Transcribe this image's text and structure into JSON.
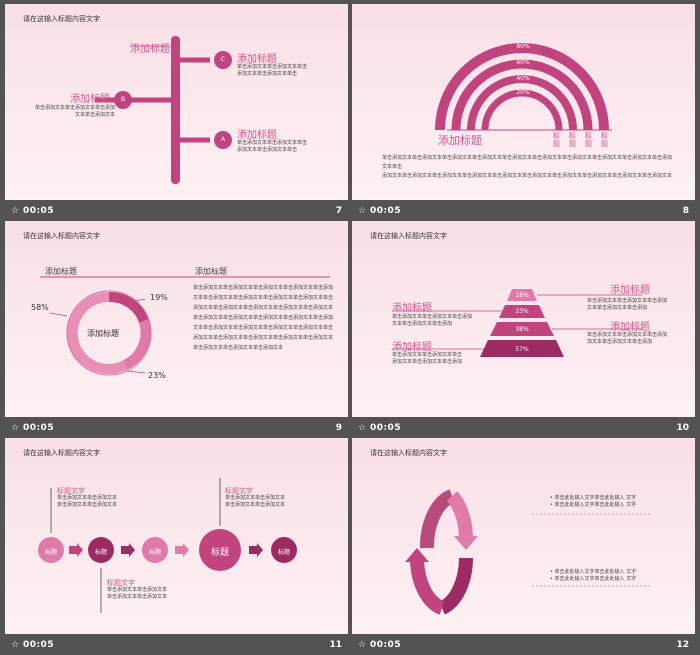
{
  "slides": [
    {
      "number": "7",
      "time": "00:05",
      "header": "请在这输入标题内容文字",
      "items": [
        {
          "letter": "C",
          "title": "添加标题",
          "text": "单击添加文本单击添加文本单击\n添加文本单击添加文本单击"
        },
        {
          "letter": "B",
          "title": "添加标题",
          "text": "单击添加文本单击添加文本单击添加\n文本单击添加文本"
        },
        {
          "letter": "A",
          "title": "添加标题",
          "text": "单击添加文本单击添加文本单击\n添加文本单击添加文本单击"
        }
      ],
      "top_title": "添加标题"
    },
    {
      "number": "8",
      "time": "00:05",
      "arcs": [
        "80%",
        "60%",
        "40%",
        "20%"
      ],
      "title": "添加标题",
      "vertical_labels": [
        "标题",
        "标题",
        "标题",
        "标题"
      ],
      "body": "单击添加文本单击添加文本单击添加文本单击添加文本单击添加文本单击添加文本单击添加文本单击添加文本单击添加文本单击添加文本单击\n添加文本单击添加文本单击添加文本单击添加文本单击添加文本单击添加文本单击添加文本单击添加文本单击添加文本单击添加文本"
    },
    {
      "number": "9",
      "time": "00:05",
      "header": "请在这输入标题内容文字",
      "left_title": "添加标题",
      "right_title": "添加标题",
      "donut_label": "添加标题",
      "pct": [
        "58%",
        "19%",
        "23%"
      ],
      "body": "单击添加文本单击添加文本单击添加文本单击添加文本单击添加文本单击添加文本单击添加文本单击添加文本单击添加文本单击添加文本单击添加文本单击添加文本单击添加文本单击添加文本单击添加文本单击添加文本单击添加文本单击添加文本单击添加文本单击添加文本单击添加文本单击添加文本单击添加文本单击添加文本单击添加文本单击添加文本单击添加文本单击添加文本单击添加文本单击添加文本单击添加文本"
    },
    {
      "number": "10",
      "time": "00:05",
      "header": "请在这输入标题内容文字",
      "pyramid": [
        "18%",
        "23%",
        "38%",
        "57%"
      ],
      "blocks": [
        {
          "title": "添加标题",
          "text": "单击添加文本单击添加文本单击添加\n文本单击添加文本单击添加"
        },
        {
          "title": "添加标题",
          "text": "单击添加文本单击添加文本单击添加\n文本单击添加文本单击添加"
        },
        {
          "title": "添加标题",
          "text": "单击添加文本单击添加文本单击添加\n加文本单击添加文本单击添加"
        },
        {
          "title": "添加标题",
          "text": "单击添加文本单击添加文本单击\n添加文本单击添加文本单击添加"
        }
      ]
    },
    {
      "number": "11",
      "time": "00:05",
      "header": "请在这输入标题内容文字",
      "circles": [
        "标题",
        "标题",
        "标题",
        "标题",
        "标题"
      ],
      "notes": [
        {
          "title": "标题文字",
          "text": "单击添加文本单击添加文本\n单击添加文本单击添加文本"
        },
        {
          "title": "标题文字",
          "text": "单击添加文本单击添加文本\n单击添加文本单击添加文本"
        },
        {
          "title": "标题文字",
          "text": "单击添加文本单击添加文本\n单击添加文本单击添加文本"
        }
      ]
    },
    {
      "number": "12",
      "time": "00:05",
      "header": "请在这输入标题内容文字",
      "bullets_top": [
        "单击此处输入文字单击此处输入 文字",
        "单击此处输入文字单击此处输入 文字"
      ],
      "bullets_bottom": [
        "单击此处输入文字单击此处输入 文字",
        "单击此处输入文字单击此处输入 文字"
      ]
    }
  ],
  "colors": {
    "accent": "#c2447f",
    "accent_light": "#e07aa8",
    "deep": "#9c2b63",
    "bg": "#535353"
  }
}
